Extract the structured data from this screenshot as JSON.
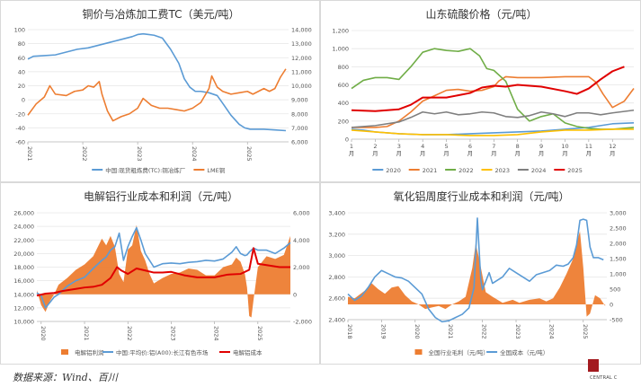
{
  "source_note": "数据来源：Wind、百川",
  "logo_text": "CENTRAL C",
  "chart_data": [
    {
      "id": "copper",
      "type": "line",
      "title": "铜价与冶炼加工费TC（美元/吨）",
      "x_ticks": [
        "2021",
        "2022",
        "2023",
        "2024",
        "2025"
      ],
      "xlim": [
        2021.0,
        2025.75
      ],
      "ylim": [
        -60,
        100
      ],
      "y_ticks": [
        -60,
        -40,
        -20,
        0,
        20,
        40,
        60,
        80,
        100
      ],
      "y2lim": [
        6000,
        14000
      ],
      "y2_ticks": [
        "6,000",
        "7,000",
        "8,000",
        "9,000",
        "10,000",
        "11,000",
        "12,000",
        "13,000",
        "14,000"
      ],
      "grid": true,
      "legend_position": "bottom",
      "series": [
        {
          "name": "中国:现货粗炼费(TC):铜冶炼厂",
          "axis": "left",
          "color": "#5b9bd5",
          "x": [
            2021.0,
            2021.1,
            2021.3,
            2021.5,
            2021.7,
            2021.9,
            2022.1,
            2022.3,
            2022.5,
            2022.7,
            2022.9,
            2023.0,
            2023.1,
            2023.2,
            2023.3,
            2023.45,
            2023.6,
            2023.75,
            2023.85,
            2023.95,
            2024.05,
            2024.15,
            2024.3,
            2024.45,
            2024.55,
            2024.7,
            2024.85,
            2024.95,
            2025.05,
            2025.15,
            2025.3,
            2025.5,
            2025.7
          ],
          "y": [
            58,
            62,
            63,
            64,
            68,
            72,
            74,
            78,
            82,
            86,
            90,
            93,
            94,
            93,
            92,
            88,
            72,
            52,
            30,
            18,
            12,
            12,
            10,
            6,
            -5,
            -22,
            -35,
            -40,
            -42,
            -42,
            -42,
            -43,
            -44
          ]
        },
        {
          "name": "LME铜",
          "axis": "right",
          "color": "#ed7d31",
          "x": [
            2021.0,
            2021.15,
            2021.3,
            2021.4,
            2021.5,
            2021.7,
            2021.85,
            2022.0,
            2022.1,
            2022.2,
            2022.3,
            2022.35,
            2022.45,
            2022.55,
            2022.7,
            2022.85,
            2023.0,
            2023.1,
            2023.25,
            2023.4,
            2023.55,
            2023.7,
            2023.85,
            2024.0,
            2024.15,
            2024.3,
            2024.35,
            2024.45,
            2024.55,
            2024.7,
            2024.85,
            2025.0,
            2025.1,
            2025.2,
            2025.3,
            2025.4,
            2025.5,
            2025.6,
            2025.7
          ],
          "y": [
            7900,
            8700,
            9200,
            10000,
            9400,
            9300,
            9600,
            9700,
            10000,
            9900,
            10300,
            9400,
            8200,
            7500,
            7800,
            8000,
            8400,
            9100,
            8600,
            8400,
            8400,
            8300,
            8200,
            8400,
            8800,
            9800,
            10700,
            9900,
            9600,
            9400,
            9500,
            9600,
            9400,
            9600,
            9800,
            9600,
            9800,
            10600,
            11200
          ]
        }
      ]
    },
    {
      "id": "sulfuric",
      "type": "line",
      "title": "山东硫酸价格（元/吨）",
      "x_ticks": [
        "1月",
        "2月",
        "3月",
        "4月",
        "5月",
        "6月",
        "7月",
        "8月",
        "9月",
        "10月",
        "11月",
        "12月"
      ],
      "xlim": [
        1,
        12.9
      ],
      "ylim": [
        0,
        1200
      ],
      "y_ticks": [
        "0",
        "200",
        "400",
        "600",
        "800",
        "1,000",
        "1,200"
      ],
      "grid": true,
      "legend_position": "bottom",
      "series": [
        {
          "name": "2020",
          "color": "#5b9bd5",
          "x": [
            1,
            1.5,
            2,
            3,
            4,
            5,
            6,
            7,
            8,
            9,
            10,
            11,
            12,
            12.9
          ],
          "y": [
            110,
            100,
            80,
            60,
            50,
            50,
            60,
            70,
            80,
            90,
            110,
            130,
            170,
            180
          ]
        },
        {
          "name": "2021",
          "color": "#ed7d31",
          "x": [
            1,
            2,
            2.5,
            3,
            3.5,
            4,
            4.5,
            5,
            5.5,
            6,
            6.5,
            7,
            7.2,
            7.5,
            8,
            8.5,
            9,
            10,
            11,
            11.3,
            11.6,
            12,
            12.5,
            12.9
          ],
          "y": [
            130,
            130,
            140,
            200,
            300,
            420,
            480,
            540,
            550,
            530,
            540,
            580,
            640,
            690,
            680,
            680,
            680,
            690,
            690,
            630,
            500,
            350,
            420,
            560
          ]
        },
        {
          "name": "2022",
          "color": "#70ad47",
          "x": [
            1,
            1.5,
            2,
            2.5,
            3,
            3.5,
            4,
            4.5,
            5,
            5.5,
            6,
            6.4,
            6.7,
            7,
            7.5,
            8,
            8.5,
            9,
            9.5,
            10,
            10.5,
            11,
            11.5,
            12,
            12.9
          ],
          "y": [
            560,
            650,
            680,
            680,
            660,
            800,
            960,
            1000,
            980,
            970,
            1000,
            920,
            780,
            760,
            640,
            330,
            200,
            250,
            280,
            180,
            140,
            120,
            110,
            110,
            130
          ]
        },
        {
          "name": "2023",
          "color": "#ffc000",
          "x": [
            1,
            2,
            3,
            4,
            5,
            6,
            7,
            8,
            9,
            10,
            11,
            12,
            12.9
          ],
          "y": [
            100,
            80,
            60,
            50,
            50,
            40,
            40,
            50,
            80,
            100,
            100,
            110,
            110
          ]
        },
        {
          "name": "2024",
          "color": "#7f7f7f",
          "x": [
            1,
            2,
            3,
            3.5,
            4,
            4.5,
            5,
            5.5,
            6,
            6.5,
            7,
            7.5,
            8,
            8.5,
            9,
            9.5,
            10,
            10.5,
            11,
            11.5,
            12,
            12.9
          ],
          "y": [
            130,
            150,
            190,
            240,
            300,
            280,
            300,
            270,
            280,
            300,
            290,
            250,
            240,
            260,
            300,
            280,
            250,
            290,
            290,
            270,
            290,
            320
          ]
        },
        {
          "name": "2025",
          "color": "#e00000",
          "x": [
            1,
            2,
            3,
            3.5,
            4,
            5,
            6,
            6.5,
            7,
            7.5,
            8,
            9,
            10,
            10.5,
            11,
            11.5,
            12,
            12.5
          ],
          "y": [
            320,
            310,
            330,
            380,
            460,
            460,
            510,
            570,
            590,
            580,
            600,
            580,
            530,
            500,
            560,
            660,
            750,
            800
          ]
        }
      ]
    },
    {
      "id": "electrolytic-al",
      "type": "area",
      "title": "电解铝行业成本和利润（元/吨）",
      "x_ticks": [
        "2020",
        "2021",
        "2022",
        "2023",
        "2024",
        "2025"
      ],
      "xlim": [
        2019.9,
        2025.75
      ],
      "ylim": [
        10000,
        26000
      ],
      "y_ticks": [
        "10,000",
        "12,000",
        "14,000",
        "16,000",
        "18,000",
        "20,000",
        "22,000",
        "24,000",
        "26,000"
      ],
      "y2lim": [
        -2000,
        6000
      ],
      "y2_ticks": [
        "-2,000",
        "0",
        "2,000",
        "4,000",
        "6,000"
      ],
      "grid": true,
      "legend_position": "bottom",
      "series": [
        {
          "name": "电解铝利润",
          "axis": "right",
          "kind": "area",
          "color": "#ed7d31",
          "x": [
            2019.9,
            2020.0,
            2020.1,
            2020.2,
            2020.3,
            2020.4,
            2020.6,
            2020.8,
            2021.0,
            2021.2,
            2021.4,
            2021.5,
            2021.6,
            2021.7,
            2021.8,
            2021.9,
            2022.0,
            2022.1,
            2022.2,
            2022.3,
            2022.4,
            2022.5,
            2022.6,
            2022.8,
            2023.0,
            2023.2,
            2023.4,
            2023.6,
            2023.8,
            2024.0,
            2024.2,
            2024.4,
            2024.5,
            2024.6,
            2024.7,
            2024.75,
            2024.8,
            2024.85,
            2024.9,
            2025.0,
            2025.2,
            2025.4,
            2025.6,
            2025.75
          ],
          "y": [
            300,
            -800,
            -1300,
            -500,
            0,
            700,
            1200,
            1800,
            2200,
            2800,
            4100,
            3600,
            4300,
            3500,
            1500,
            900,
            3300,
            3600,
            5100,
            3200,
            2500,
            1500,
            800,
            1200,
            1500,
            1600,
            1900,
            1800,
            1400,
            1400,
            2000,
            2200,
            2700,
            2400,
            1500,
            500,
            -1600,
            -1700,
            -400,
            2000,
            2800,
            2600,
            2900,
            4300
          ]
        },
        {
          "name": "中国:平均价:铝(A00):长江有色市场",
          "axis": "left",
          "kind": "line",
          "color": "#5b9bd5",
          "x": [
            2019.9,
            2020.0,
            2020.1,
            2020.2,
            2020.3,
            2020.4,
            2020.6,
            2020.8,
            2021.0,
            2021.2,
            2021.4,
            2021.5,
            2021.6,
            2021.7,
            2021.8,
            2021.9,
            2022.0,
            2022.1,
            2022.2,
            2022.3,
            2022.4,
            2022.5,
            2022.6,
            2022.8,
            2023.0,
            2023.2,
            2023.4,
            2023.6,
            2023.8,
            2024.0,
            2024.2,
            2024.4,
            2024.5,
            2024.6,
            2024.7,
            2024.75,
            2024.8,
            2024.85,
            2024.9,
            2025.0,
            2025.2,
            2025.4,
            2025.6,
            2025.75
          ],
          "y": [
            14200,
            13800,
            12000,
            12800,
            13600,
            14000,
            15200,
            16000,
            16500,
            17800,
            19000,
            19500,
            20500,
            21000,
            23000,
            19000,
            21000,
            22500,
            23800,
            22000,
            20000,
            19000,
            18000,
            18500,
            18600,
            18500,
            18700,
            18800,
            19000,
            18900,
            19200,
            20200,
            21000,
            20000,
            19700,
            19800,
            20200,
            20500,
            20800,
            20500,
            20500,
            20000,
            20800,
            21600
          ]
        },
        {
          "name": "电解铝成本",
          "axis": "left",
          "kind": "line",
          "color": "#e00000",
          "x": [
            2019.9,
            2020.1,
            2020.3,
            2020.5,
            2020.8,
            2021.0,
            2021.2,
            2021.4,
            2021.6,
            2021.75,
            2021.85,
            2022.0,
            2022.2,
            2022.4,
            2022.6,
            2022.8,
            2023.0,
            2023.3,
            2023.6,
            2024.0,
            2024.3,
            2024.6,
            2024.8,
            2024.9,
            2025.0,
            2025.2,
            2025.5,
            2025.75
          ],
          "y": [
            13800,
            14100,
            14200,
            14500,
            14800,
            15000,
            15100,
            15400,
            16400,
            18000,
            17500,
            17000,
            17800,
            17500,
            17200,
            17200,
            17300,
            16800,
            16500,
            16500,
            16900,
            17000,
            17600,
            20800,
            18500,
            18300,
            18000,
            18000
          ]
        }
      ]
    },
    {
      "id": "alumina",
      "type": "area",
      "title": "氧化铝周度行业成本和利润（元/吨）",
      "x_ticks": [
        "2018",
        "2019",
        "2020",
        "2021",
        "2022",
        "2023",
        "2024",
        "2025"
      ],
      "xlim": [
        2018.0,
        2025.7
      ],
      "ylim": [
        2400,
        3400
      ],
      "y_ticks": [
        "2,400",
        "2,600",
        "2,800",
        "3,000",
        "3,200",
        "3,400"
      ],
      "y2lim": [
        -500,
        3000
      ],
      "y2_ticks": [
        "-500",
        "0",
        "500",
        "1,000",
        "1,500",
        "2,000",
        "2,500",
        "3,000"
      ],
      "grid": true,
      "legend_position": "bottom",
      "series": [
        {
          "name": "全国行业毛利（元/吨）",
          "axis": "right",
          "kind": "area",
          "color": "#ed7d31",
          "x": [
            2018.0,
            2018.2,
            2018.5,
            2018.7,
            2018.9,
            2019.1,
            2019.3,
            2019.5,
            2019.7,
            2019.9,
            2020.1,
            2020.3,
            2020.5,
            2020.7,
            2020.9,
            2021.1,
            2021.3,
            2021.5,
            2021.7,
            2021.8,
            2021.9,
            2022.1,
            2022.3,
            2022.6,
            2022.9,
            2023.1,
            2023.4,
            2023.7,
            2023.9,
            2024.1,
            2024.3,
            2024.5,
            2024.7,
            2024.8,
            2024.9,
            2025.0,
            2025.1,
            2025.2,
            2025.35,
            2025.5,
            2025.65
          ],
          "y": [
            250,
            200,
            450,
            700,
            500,
            350,
            550,
            600,
            300,
            100,
            0,
            -150,
            -100,
            -50,
            -150,
            0,
            100,
            250,
            1200,
            2000,
            1500,
            400,
            250,
            50,
            150,
            50,
            150,
            200,
            100,
            200,
            550,
            1000,
            1500,
            2000,
            2400,
            1200,
            -400,
            -300,
            300,
            200,
            -50
          ]
        },
        {
          "name": "全国成本（元/吨）",
          "axis": "left",
          "kind": "line",
          "color": "#5b9bd5",
          "x": [
            2018.0,
            2018.2,
            2018.4,
            2018.6,
            2018.8,
            2019.0,
            2019.2,
            2019.4,
            2019.6,
            2019.8,
            2020.0,
            2020.2,
            2020.4,
            2020.6,
            2020.8,
            2021.0,
            2021.2,
            2021.4,
            2021.6,
            2021.75,
            2021.85,
            2021.95,
            2022.0,
            2022.1,
            2022.2,
            2022.3,
            2022.4,
            2022.6,
            2022.8,
            2023.0,
            2023.2,
            2023.4,
            2023.6,
            2023.8,
            2024.0,
            2024.2,
            2024.4,
            2024.55,
            2024.7,
            2024.8,
            2024.9,
            2025.0,
            2025.1,
            2025.2,
            2025.3,
            2025.45,
            2025.6
          ],
          "y": [
            2640,
            2580,
            2620,
            2700,
            2800,
            2860,
            2830,
            2800,
            2790,
            2760,
            2700,
            2640,
            2500,
            2420,
            2380,
            2390,
            2420,
            2450,
            2510,
            2700,
            3350,
            2780,
            2680,
            2760,
            2840,
            2740,
            2760,
            2800,
            2880,
            2840,
            2800,
            2760,
            2820,
            2840,
            2860,
            2910,
            2900,
            2920,
            2980,
            3100,
            3330,
            3340,
            3330,
            3080,
            2980,
            2980,
            2960
          ]
        }
      ]
    }
  ]
}
